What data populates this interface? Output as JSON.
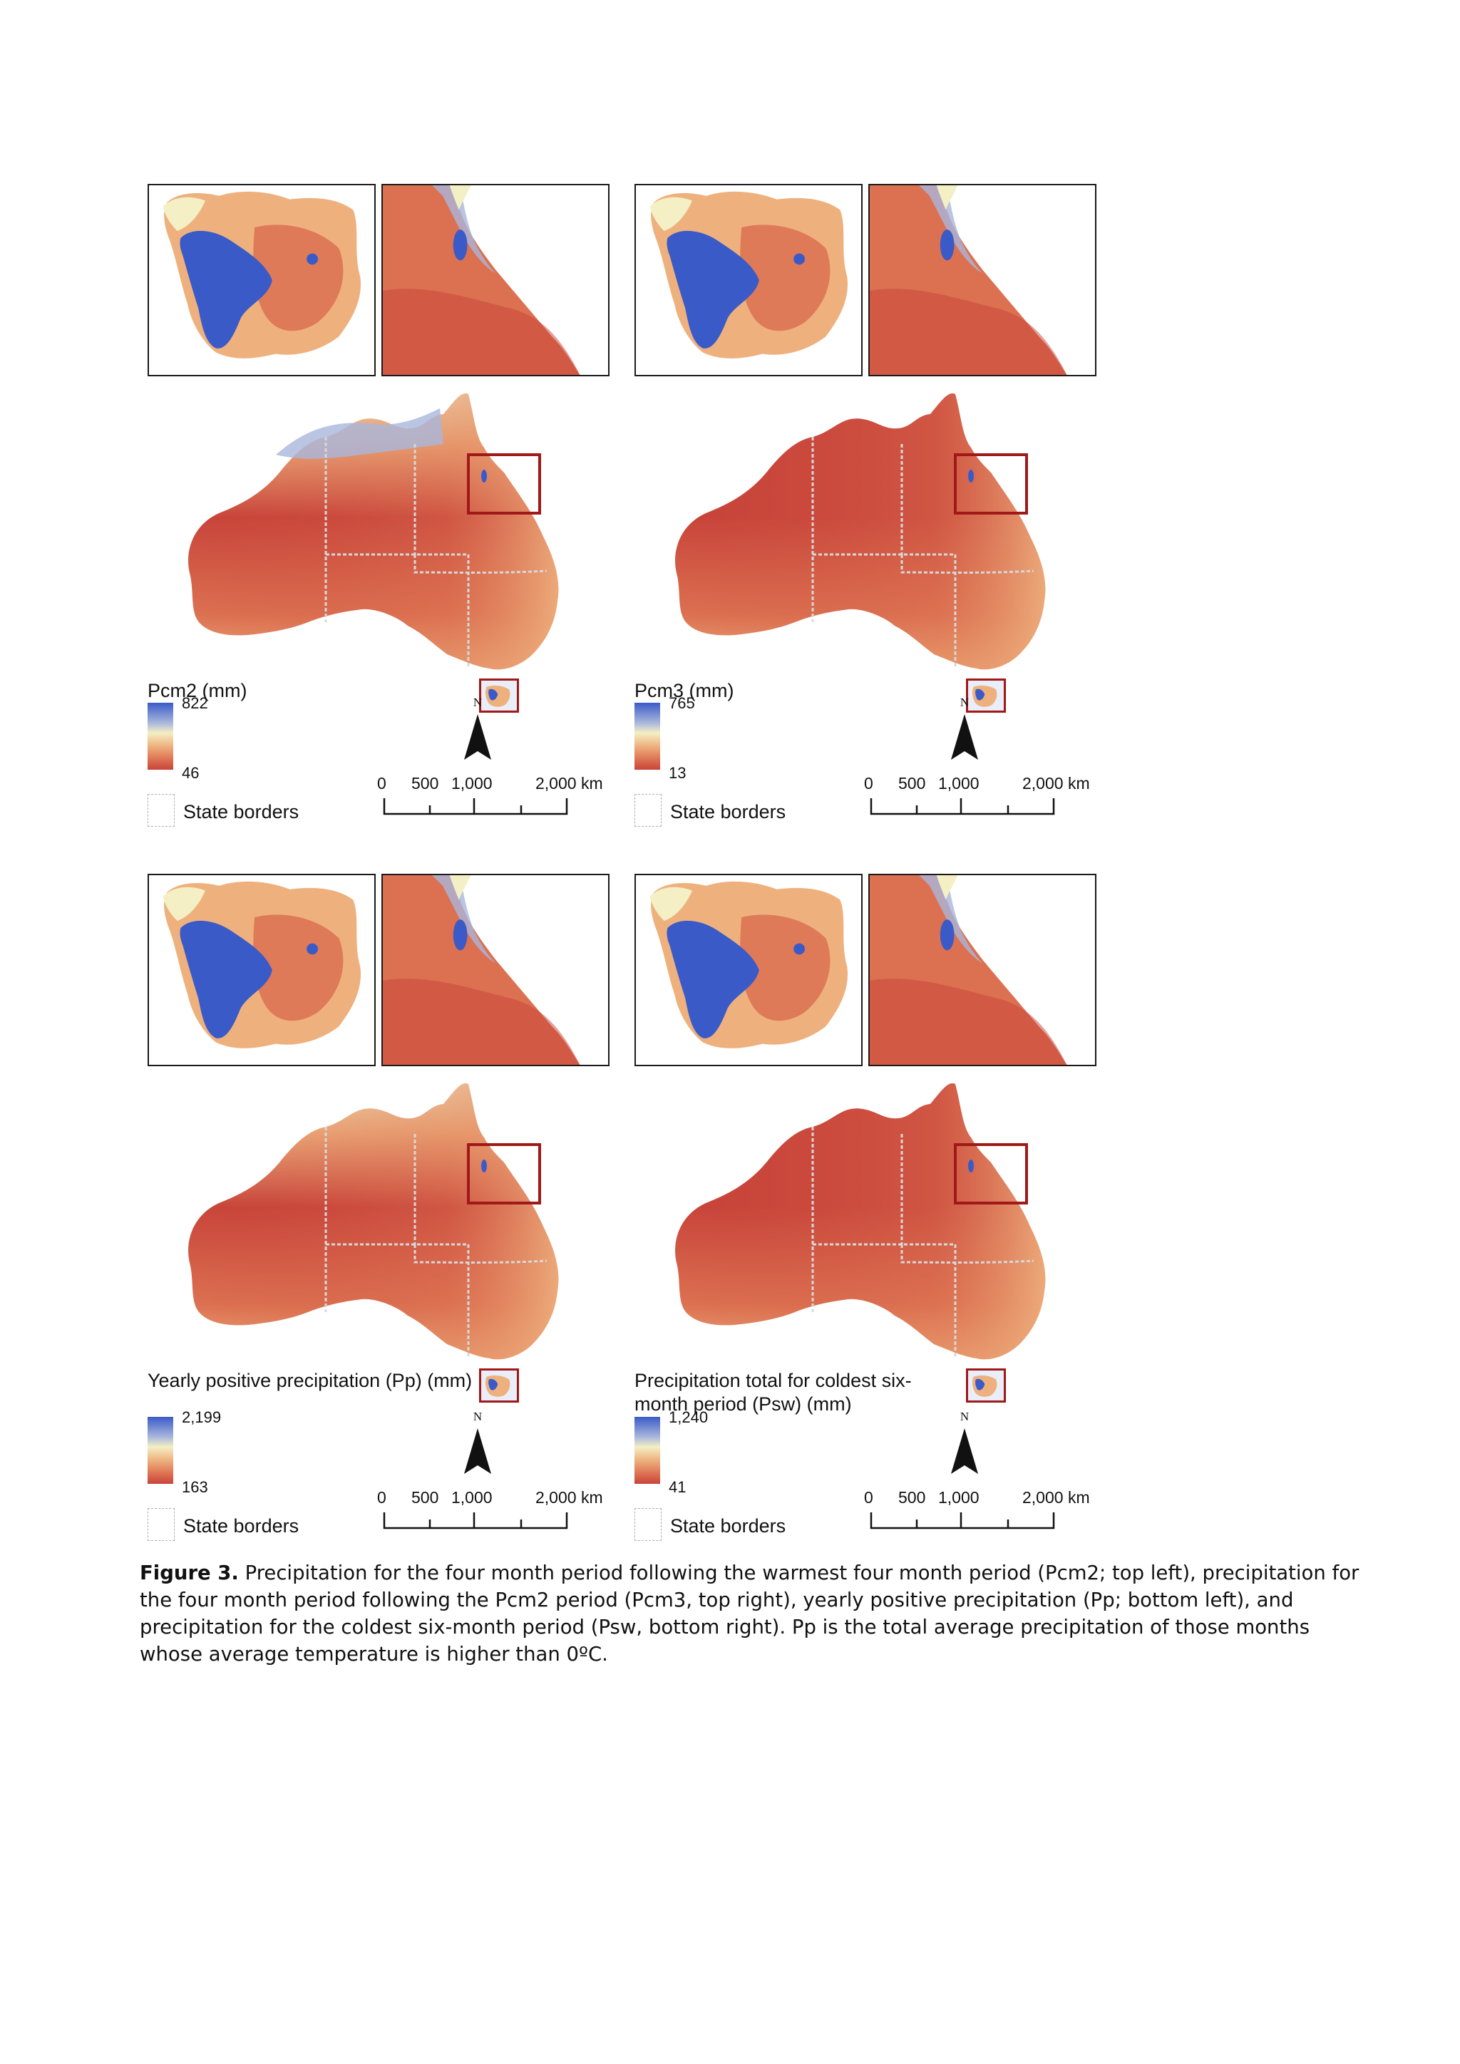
{
  "panels": [
    {
      "legend_title": "Pcm2 (mm)",
      "max": "822",
      "min": "46",
      "palette": [
        "#3a5bc7",
        "#a9b7dc",
        "#f4efc4",
        "#eeb17e",
        "#dc7151",
        "#c8443a"
      ]
    },
    {
      "legend_title": "Pcm3 (mm)",
      "max": "765",
      "min": "13",
      "palette": [
        "#3a5bc7",
        "#a9b7dc",
        "#f4efc4",
        "#eeb17e",
        "#dc7151",
        "#c8443a"
      ]
    },
    {
      "legend_title": "Yearly positive precipitation (Pp) (mm)",
      "max": "2,199",
      "min": "163",
      "palette": [
        "#3a5bc7",
        "#a9b7dc",
        "#f4efc4",
        "#eeb17e",
        "#dc7151",
        "#c8443a"
      ]
    },
    {
      "legend_title": "Precipitation total for coldest six-month period (Psw) (mm)",
      "max": "1,240",
      "min": "41",
      "palette": [
        "#3a5bc7",
        "#a9b7dc",
        "#f4efc4",
        "#eeb17e",
        "#dc7151",
        "#c8443a"
      ]
    }
  ],
  "common": {
    "state_borders": "State borders",
    "north": "N",
    "scale_labels": [
      "0",
      "500",
      "1,000",
      "2,000",
      "km"
    ]
  },
  "caption": {
    "label": "Figure 3.",
    "text": "Precipitation for the four month period following the warmest four month period (Pcm2; top left), precipitation for the four month period following the Pcm2 period (Pcm3, top right), yearly positive precipitation (Pp; bottom left), and precipitation for the coldest six-month period (Psw, bottom right). Pp is the total average precipitation of those months whose average temperature is higher than 0ºC."
  }
}
